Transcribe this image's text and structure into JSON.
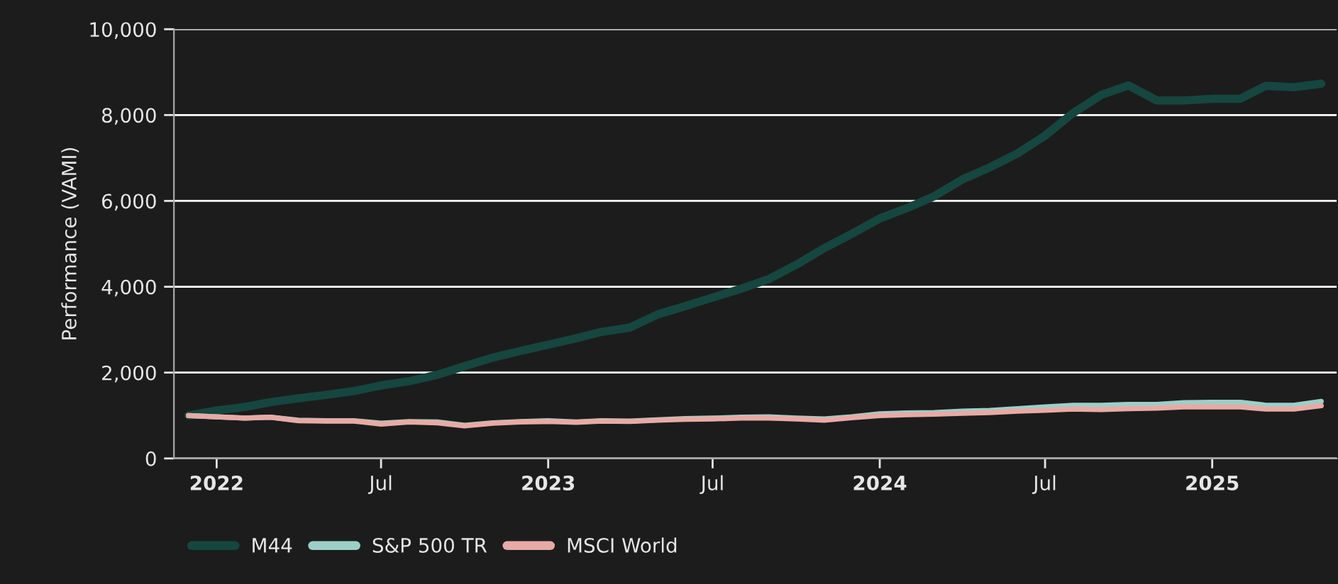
{
  "chart_data": {
    "type": "line",
    "ylabel": "Performance (VAMI)",
    "x": [
      "2021-12",
      "2022-01",
      "2022-02",
      "2022-03",
      "2022-04",
      "2022-05",
      "2022-06",
      "2022-07",
      "2022-08",
      "2022-09",
      "2022-10",
      "2022-11",
      "2022-12",
      "2023-01",
      "2023-02",
      "2023-03",
      "2023-04",
      "2023-05",
      "2023-06",
      "2023-07",
      "2023-08",
      "2023-09",
      "2023-10",
      "2023-11",
      "2023-12",
      "2024-01",
      "2024-02",
      "2024-03",
      "2024-04",
      "2024-05",
      "2024-06",
      "2024-07",
      "2024-08",
      "2024-09",
      "2024-10",
      "2024-11",
      "2024-12",
      "2025-01",
      "2025-02",
      "2025-03",
      "2025-04",
      "2025-05"
    ],
    "series": [
      {
        "name": "M44",
        "color": "#15463f",
        "values": [
          1000,
          1115,
          1200,
          1310,
          1400,
          1480,
          1570,
          1700,
          1800,
          1950,
          2150,
          2350,
          2500,
          2650,
          2800,
          2950,
          3050,
          3350,
          3550,
          3750,
          3950,
          4180,
          4510,
          4900,
          5230,
          5590,
          5840,
          6110,
          6500,
          6780,
          7110,
          7520,
          8050,
          8470,
          8690,
          8340,
          8340,
          8380,
          8380,
          8680,
          8650,
          8730
        ]
      },
      {
        "name": "S&P 500 TR",
        "color": "#9ccfc8",
        "values": [
          1000,
          970,
          940,
          960,
          890,
          880,
          880,
          820,
          860,
          850,
          770,
          830,
          860,
          880,
          850,
          880,
          870,
          900,
          930,
          940,
          960,
          970,
          940,
          920,
          970,
          1040,
          1060,
          1070,
          1100,
          1120,
          1160,
          1200,
          1240,
          1240,
          1260,
          1260,
          1300,
          1310,
          1310,
          1240,
          1240,
          1330
        ]
      },
      {
        "name": "MSCI World",
        "color": "#e8aaa5",
        "values": [
          1000,
          970,
          940,
          960,
          880,
          870,
          870,
          800,
          850,
          830,
          760,
          820,
          850,
          860,
          840,
          870,
          860,
          890,
          910,
          920,
          940,
          940,
          920,
          890,
          950,
          1000,
          1020,
          1030,
          1050,
          1070,
          1100,
          1120,
          1150,
          1140,
          1160,
          1170,
          1200,
          1200,
          1200,
          1150,
          1150,
          1230
        ]
      }
    ],
    "xlim": [
      "2021-11-15",
      "2025-05-18"
    ],
    "xticks": [
      {
        "value": "2022-01-01",
        "label": "2022"
      },
      {
        "value": "2022-07-01",
        "label": "Jul"
      },
      {
        "value": "2023-01-01",
        "label": "2023"
      },
      {
        "value": "2023-07-01",
        "label": "Jul"
      },
      {
        "value": "2024-01-01",
        "label": "2024"
      },
      {
        "value": "2024-07-01",
        "label": "Jul"
      },
      {
        "value": "2025-01-01",
        "label": "2025"
      }
    ],
    "ylim": [
      0,
      10000
    ],
    "yticks": [
      {
        "value": 0,
        "label": "0"
      },
      {
        "value": 2000,
        "label": "2,000"
      },
      {
        "value": 4000,
        "label": "4,000"
      },
      {
        "value": 6000,
        "label": "6,000"
      },
      {
        "value": 8000,
        "label": "8,000"
      },
      {
        "value": 10000,
        "label": "10,000"
      }
    ],
    "grid": "y",
    "legend": "bottom left",
    "marker": "none",
    "line_style": "solid"
  }
}
